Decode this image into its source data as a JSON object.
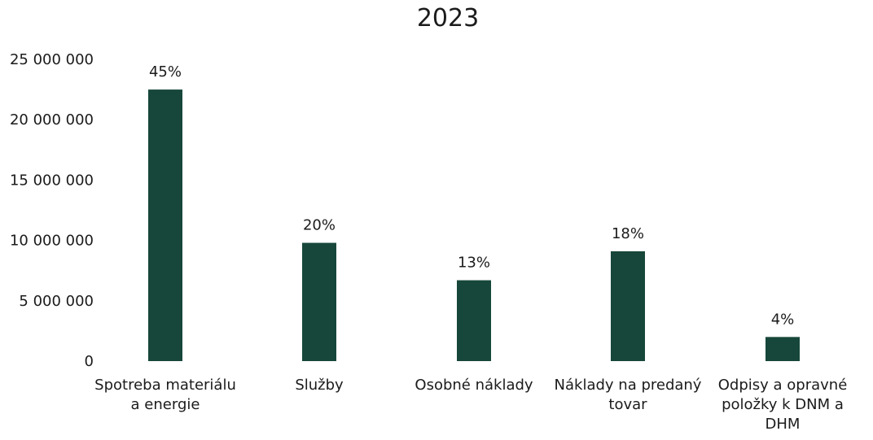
{
  "chart_data": {
    "type": "bar",
    "title": "2023",
    "categories": [
      [
        "Spotreba materiálu",
        "a energie"
      ],
      [
        "Služby"
      ],
      [
        "Osobné náklady"
      ],
      [
        "Náklady na predaný",
        "tovar"
      ],
      [
        "Odpisy a opravné",
        "položky k DNM a",
        "DHM"
      ]
    ],
    "values": [
      22500000,
      9800000,
      6700000,
      9100000,
      2000000
    ],
    "data_labels": [
      "45%",
      "20%",
      "13%",
      "18%",
      "4%"
    ],
    "ylim": [
      0,
      25000000
    ],
    "yticks": [
      0,
      5000000,
      10000000,
      15000000,
      20000000,
      25000000
    ],
    "ytick_labels": [
      "0",
      "5 000 000",
      "10 000 000",
      "15 000 000",
      "20 000 000",
      "25 000 000"
    ],
    "xlabel": "",
    "ylabel": "",
    "grid": false,
    "legend": "none",
    "bar_color": "#17473a"
  }
}
